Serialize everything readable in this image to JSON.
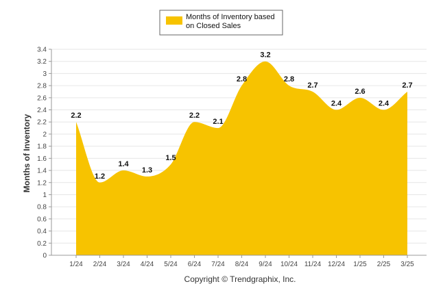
{
  "chart_data": {
    "type": "area",
    "categories": [
      "1/24",
      "2/24",
      "3/24",
      "4/24",
      "5/24",
      "6/24",
      "7/24",
      "8/24",
      "9/24",
      "10/24",
      "11/24",
      "12/24",
      "1/25",
      "2/25",
      "3/25"
    ],
    "series": [
      {
        "name": "Months of Inventory based on Closed Sales",
        "legend_lines": [
          "Months of Inventory based",
          "on Closed Sales"
        ],
        "values": [
          2.2,
          1.2,
          1.4,
          1.3,
          1.5,
          2.2,
          2.1,
          2.8,
          3.2,
          2.8,
          2.7,
          2.4,
          2.6,
          2.4,
          2.7
        ],
        "labels": [
          "2.2",
          "1.2",
          "1.4",
          "1.3",
          "1.5",
          "2.2",
          "2.1",
          "2.8",
          "3.2",
          "2.8",
          "2.7",
          "2.4",
          "2.6",
          "2.4",
          "2.7"
        ],
        "color": "#F7C300"
      }
    ],
    "ylabel": "Months of Inventory",
    "ylim": [
      0,
      3.4
    ],
    "yticks": [
      "0",
      "0.2",
      "0.4",
      "0.6",
      "0.8",
      "1",
      "1.2",
      "1.4",
      "1.6",
      "1.8",
      "2",
      "2.2",
      "2.4",
      "2.6",
      "2.8",
      "3",
      "3.2",
      "3.4"
    ],
    "grid": true,
    "legend_position": "top-center"
  },
  "footer": {
    "copyright": "Copyright © Trendgraphix, Inc."
  },
  "colors": {
    "grid": "#E6E6E6",
    "axis": "#999999",
    "area": "#F7C300",
    "text": "#333333"
  }
}
